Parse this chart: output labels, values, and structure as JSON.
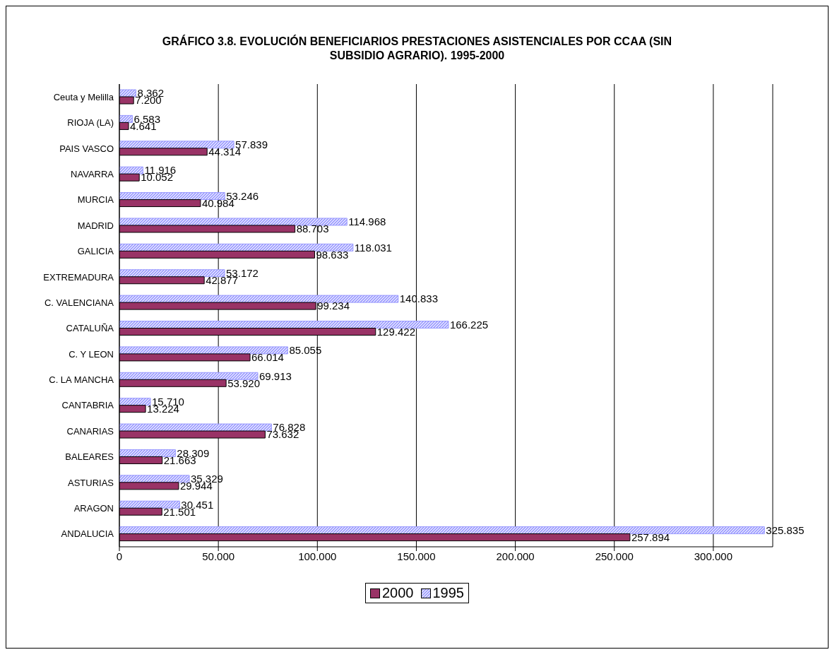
{
  "chart_data": {
    "type": "bar",
    "orientation": "horizontal",
    "title": "GRÁFICO 3.8. EVOLUCIÓN BENEFICIARIOS PRESTACIONES ASISTENCIALES POR CCAA (SIN SUBSIDIO AGRARIO). 1995-2000",
    "categories": [
      "Ceuta y Melilla",
      "RIOJA (LA)",
      "PAIS VASCO",
      "NAVARRA",
      "MURCIA",
      "MADRID",
      "GALICIA",
      "EXTREMADURA",
      "C. VALENCIANA",
      "CATALUÑA",
      "C. Y LEON",
      "C. LA MANCHA",
      "CANTABRIA",
      "CANARIAS",
      "BALEARES",
      "ASTURIAS",
      "ARAGON",
      "ANDALUCIA"
    ],
    "series": [
      {
        "name": "2000",
        "color": "#993366",
        "values": [
          7200,
          4641,
          44314,
          10052,
          40984,
          88703,
          98633,
          42877,
          99234,
          129422,
          66014,
          53920,
          13224,
          73632,
          21663,
          29944,
          21501,
          257894
        ],
        "value_labels": [
          "7.200",
          "4.641",
          "44.314",
          "10.052",
          "40.984",
          "88.703",
          "98.633",
          "42.877",
          "99.234",
          "129.422",
          "66.014",
          "53.920",
          "13.224",
          "73.632",
          "21.663",
          "29.944",
          "21.501",
          "257.894"
        ]
      },
      {
        "name": "1995",
        "color": "#9999ff",
        "values": [
          8362,
          6583,
          57839,
          11916,
          53246,
          114968,
          118031,
          53172,
          140833,
          166225,
          85055,
          69913,
          15710,
          76828,
          28309,
          35329,
          30451,
          325835
        ],
        "value_labels": [
          "8.362",
          "6.583",
          "57.839",
          "11.916",
          "53.246",
          "114.968",
          "118.031",
          "53.172",
          "140.833",
          "166.225",
          "85.055",
          "69.913",
          "15.710",
          "76.828",
          "28.309",
          "35.329",
          "30.451",
          "325.835"
        ]
      }
    ],
    "xlim": [
      0,
      330000
    ],
    "xticks": [
      0,
      {
        "value": 50000,
        "label": "50.000"
      },
      {
        "value": 100000,
        "label": "100.000"
      },
      {
        "value": 150000,
        "label": "150.000"
      },
      {
        "value": 200000,
        "label": "200.000"
      },
      {
        "value": 250000,
        "label": "250.000"
      },
      {
        "value": 300000,
        "label": "300.000"
      }
    ],
    "grid": "x",
    "legend": "bottom"
  }
}
